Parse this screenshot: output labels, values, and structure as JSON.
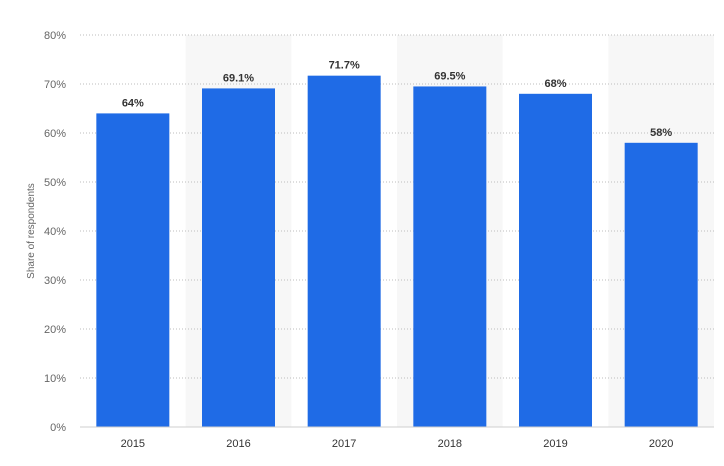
{
  "chart_data": {
    "type": "bar",
    "categories": [
      "2015",
      "2016",
      "2017",
      "2018",
      "2019",
      "2020"
    ],
    "values": [
      64,
      69.1,
      71.7,
      69.5,
      68,
      58
    ],
    "data_labels": [
      "64%",
      "69.1%",
      "71.7%",
      "69.5%",
      "68%",
      "58%"
    ],
    "ylabel": "Share of respondents",
    "xlabel": "",
    "ylim": [
      0,
      80
    ],
    "yticks": [
      0,
      10,
      20,
      30,
      40,
      50,
      60,
      70,
      80
    ],
    "ytick_labels": [
      "0%",
      "10%",
      "20%",
      "30%",
      "40%",
      "50%",
      "60%",
      "70%",
      "80%"
    ],
    "grid": true,
    "grid_style": "dotted",
    "legend": "none",
    "bar_color": "#1f6be6",
    "band_color": "#f7f7f7"
  }
}
